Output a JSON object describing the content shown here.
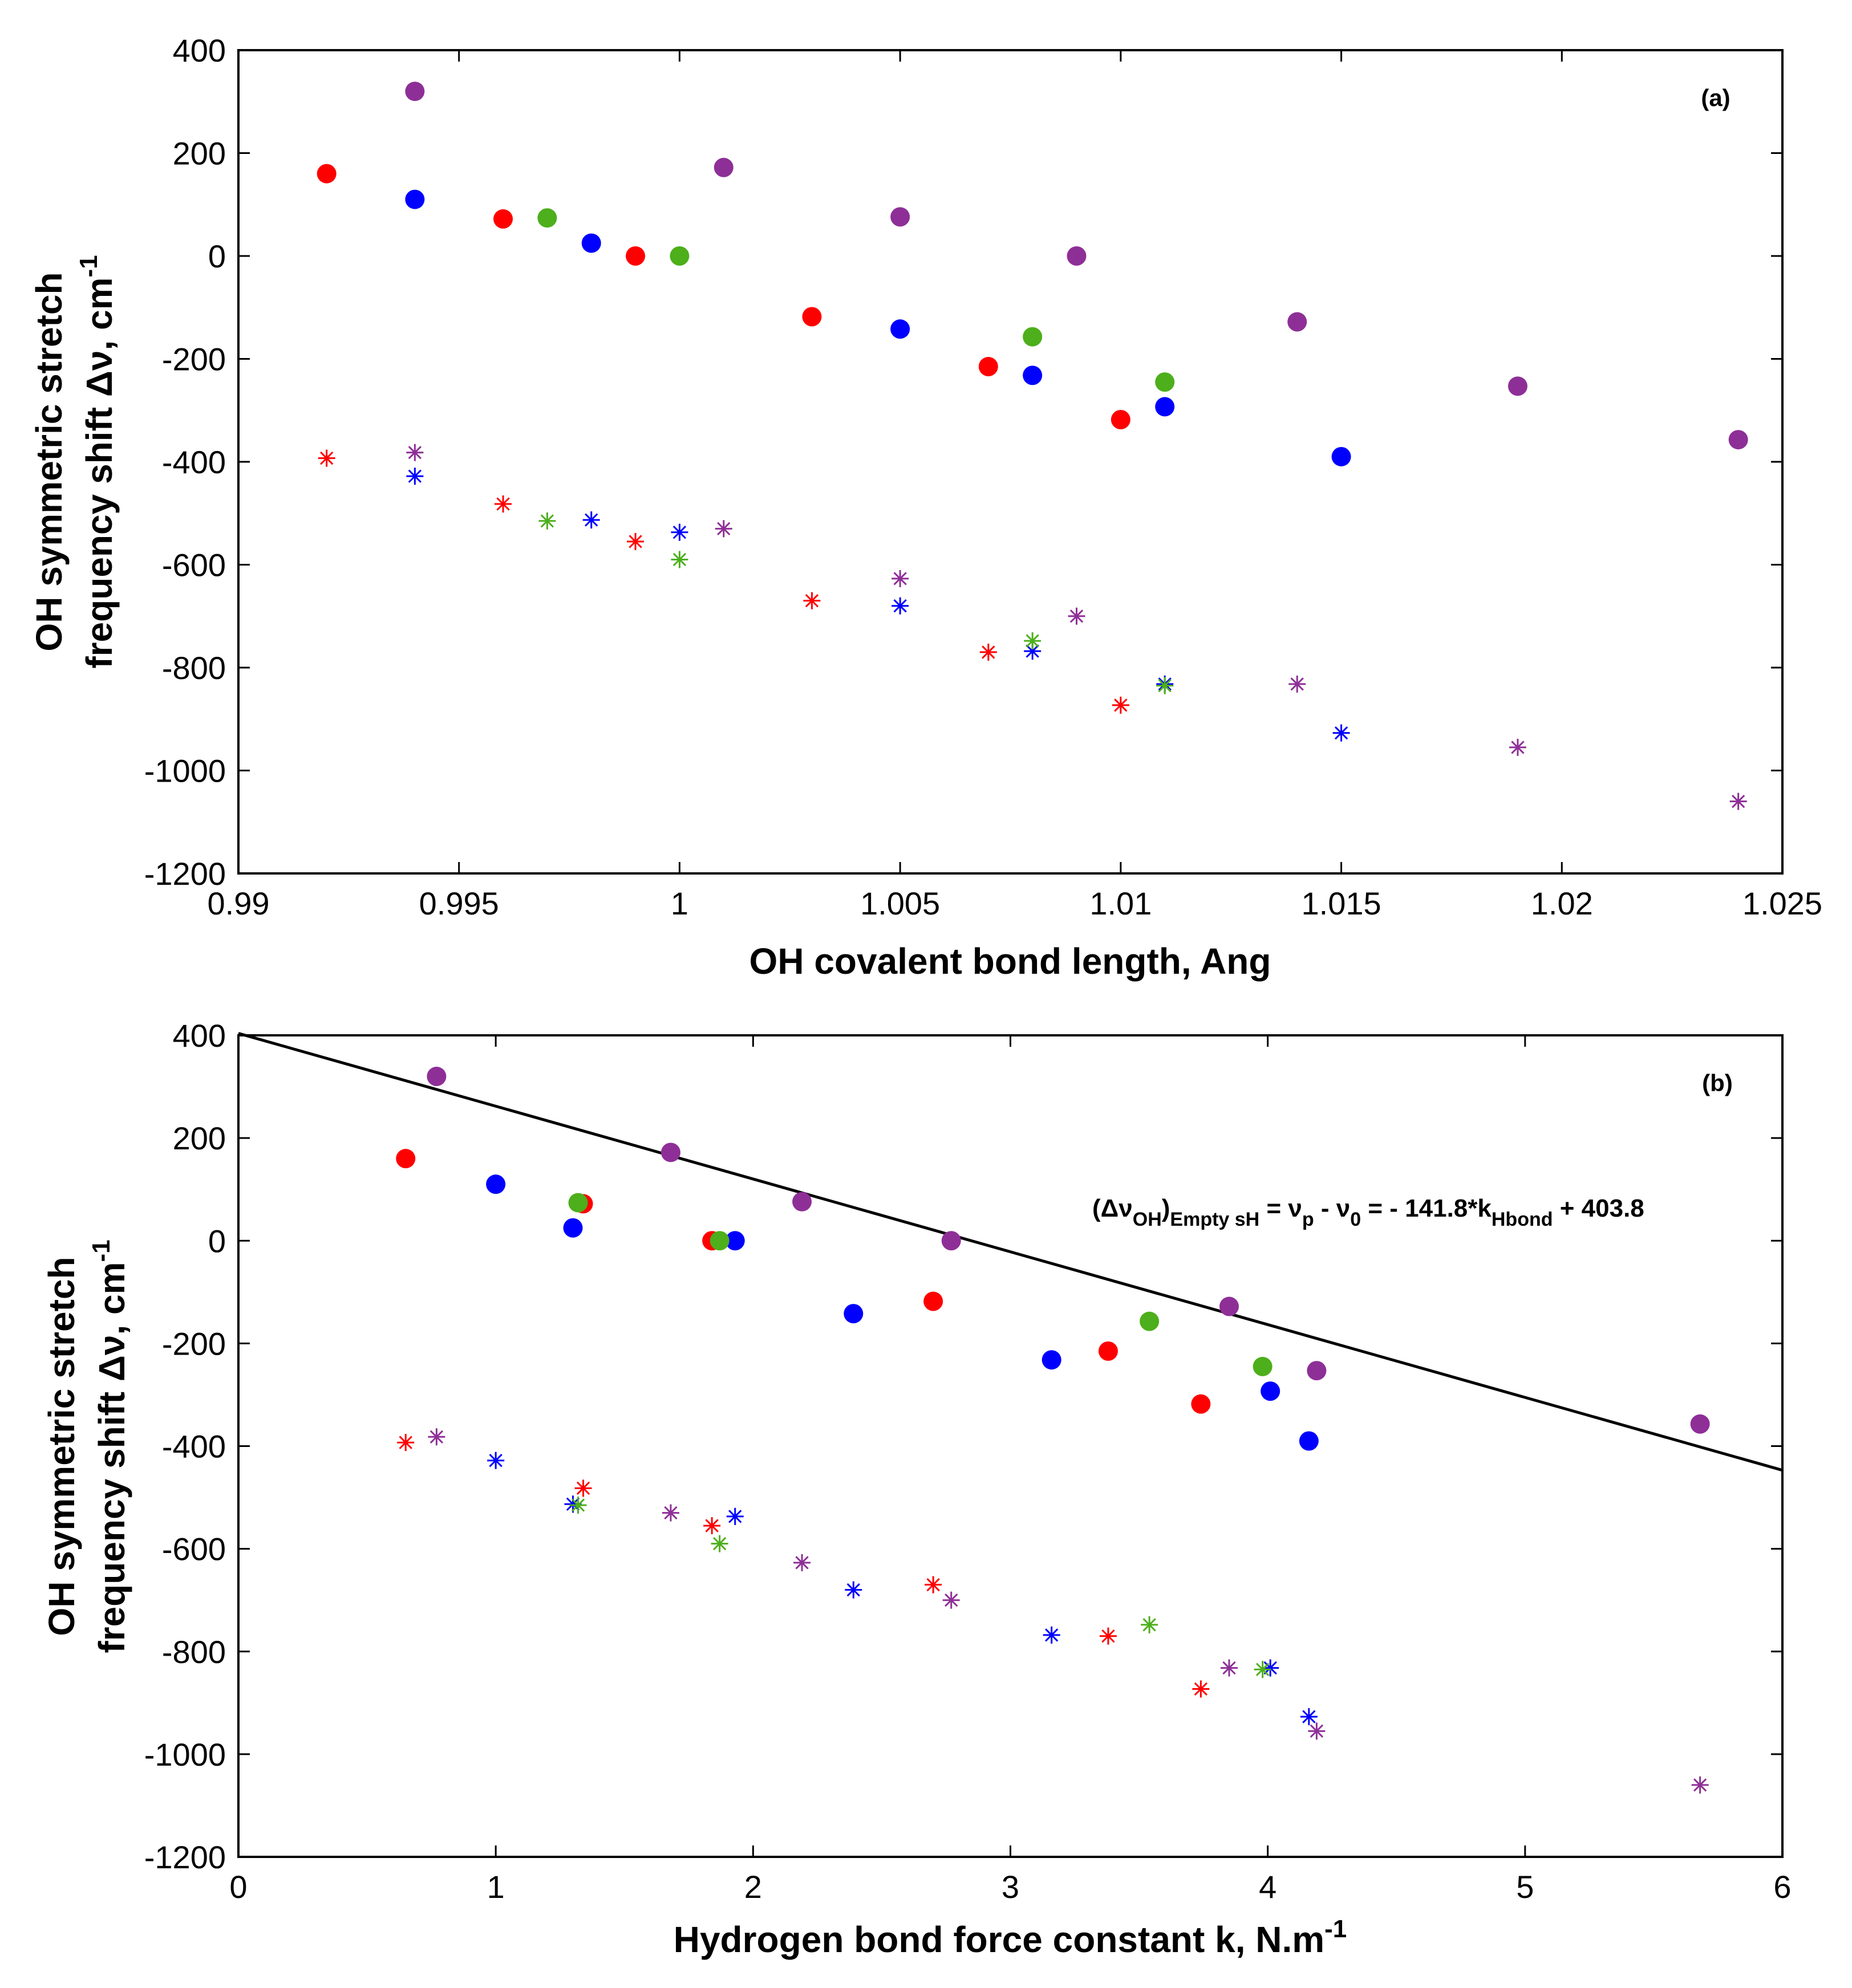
{
  "colors": {
    "red": "#ff0000",
    "green": "#4daf1b",
    "blue": "#0000ff",
    "purple": "#8e2f97",
    "fit": "#000000"
  },
  "chart_data": [
    {
      "type": "scatter",
      "panel_label": "(a)",
      "xlabel": "OH covalent bond length, Ang",
      "ylabel_line1": "OH symmetric stretch",
      "ylabel_line2": "frequency shift Δν, cm",
      "ylabel_exp": "-1",
      "xlim": [
        0.99,
        1.025
      ],
      "ylim": [
        -1200,
        400
      ],
      "xticks": [
        0.99,
        0.995,
        1,
        1.005,
        1.01,
        1.015,
        1.02,
        1.025
      ],
      "xtick_labels": [
        "0.99",
        "0.995",
        "1",
        "1.005",
        "1.01",
        "1.015",
        "1.02",
        "1.025"
      ],
      "yticks": [
        400,
        200,
        0,
        -200,
        -400,
        -600,
        -800,
        -1000,
        -1200
      ],
      "ytick_labels": [
        "400",
        "200",
        "0",
        "-200",
        "-400",
        "-600",
        "-800",
        "-1000",
        "-1200"
      ],
      "series": [
        {
          "name": "red-dots",
          "color": "red",
          "marker": "dot",
          "points": [
            [
              0.992,
              160
            ],
            [
              0.996,
              72
            ],
            [
              0.999,
              0
            ],
            [
              1.003,
              -118
            ],
            [
              1.007,
              -215
            ],
            [
              1.01,
              -318
            ]
          ]
        },
        {
          "name": "blue-dots",
          "color": "blue",
          "marker": "dot",
          "points": [
            [
              0.994,
              110
            ],
            [
              0.998,
              25
            ],
            [
              1.005,
              -142
            ],
            [
              1.008,
              -232
            ],
            [
              1.011,
              -293
            ],
            [
              1.015,
              -390
            ]
          ]
        },
        {
          "name": "green-dots",
          "color": "green",
          "marker": "dot",
          "points": [
            [
              0.997,
              74
            ],
            [
              1.0,
              0
            ],
            [
              1.008,
              -157
            ],
            [
              1.011,
              -245
            ]
          ]
        },
        {
          "name": "purple-dots",
          "color": "purple",
          "marker": "dot",
          "points": [
            [
              0.994,
              320
            ],
            [
              1.001,
              172
            ],
            [
              1.005,
              76
            ],
            [
              1.009,
              0
            ],
            [
              1.014,
              -128
            ],
            [
              1.019,
              -253
            ],
            [
              1.024,
              -357
            ]
          ]
        },
        {
          "name": "red-stars",
          "color": "red",
          "marker": "star",
          "points": [
            [
              0.992,
              -393
            ],
            [
              0.996,
              -482
            ],
            [
              0.999,
              -555
            ],
            [
              1.003,
              -670
            ],
            [
              1.007,
              -770
            ],
            [
              1.01,
              -873
            ]
          ]
        },
        {
          "name": "blue-stars",
          "color": "blue",
          "marker": "star",
          "points": [
            [
              0.994,
              -428
            ],
            [
              0.998,
              -513
            ],
            [
              1.0,
              -537
            ],
            [
              1.005,
              -680
            ],
            [
              1.008,
              -768
            ],
            [
              1.011,
              -832
            ],
            [
              1.015,
              -927
            ]
          ]
        },
        {
          "name": "green-stars",
          "color": "green",
          "marker": "star",
          "points": [
            [
              0.997,
              -515
            ],
            [
              1.0,
              -590
            ],
            [
              1.008,
              -748
            ],
            [
              1.011,
              -835
            ]
          ]
        },
        {
          "name": "purple-stars",
          "color": "purple",
          "marker": "star",
          "points": [
            [
              0.994,
              -382
            ],
            [
              1.001,
              -530
            ],
            [
              1.005,
              -627
            ],
            [
              1.009,
              -700
            ],
            [
              1.014,
              -832
            ],
            [
              1.019,
              -955
            ],
            [
              1.024,
              -1060
            ]
          ]
        }
      ]
    },
    {
      "type": "scatter",
      "panel_label": "(b)",
      "xlabel": "Hydrogen bond force constant k, N.m",
      "xlabel_exp": "-1",
      "ylabel_line1": "OH symmetric stretch",
      "ylabel_line2": "frequency shift Δν, cm",
      "ylabel_exp": "-1",
      "xlim": [
        0,
        6
      ],
      "ylim": [
        -1200,
        400
      ],
      "xticks": [
        0,
        1,
        2,
        3,
        4,
        5,
        6
      ],
      "xtick_labels": [
        "0",
        "1",
        "2",
        "3",
        "4",
        "5",
        "6"
      ],
      "yticks": [
        400,
        200,
        0,
        -200,
        -400,
        -600,
        -800,
        -1000,
        -1200
      ],
      "ytick_labels": [
        "400",
        "200",
        "0",
        "-200",
        "-400",
        "-600",
        "-800",
        "-1000",
        "-1200"
      ],
      "fit_line": {
        "slope": -141.8,
        "intercept": 403.8,
        "x_range": [
          0,
          6
        ]
      },
      "annotation": {
        "open": "(Δν",
        "sub1": "OH",
        "close": ")",
        "sub2": "Empty sH",
        "mid": " = ν",
        "sub3": "p",
        "mid2": " - ν",
        "sub4": "0",
        "mid3": " = - 141.8*k",
        "sub5": "Hbond",
        "end": " + 403.8"
      },
      "series": [
        {
          "name": "red-dots",
          "color": "red",
          "marker": "dot",
          "points": [
            [
              0.65,
              160
            ],
            [
              1.34,
              72
            ],
            [
              1.84,
              0
            ],
            [
              2.7,
              -118
            ],
            [
              3.38,
              -215
            ],
            [
              3.74,
              -318
            ]
          ]
        },
        {
          "name": "blue-dots",
          "color": "blue",
          "marker": "dot",
          "points": [
            [
              1.0,
              110
            ],
            [
              1.3,
              25
            ],
            [
              1.93,
              0
            ],
            [
              2.39,
              -142
            ],
            [
              3.16,
              -232
            ],
            [
              4.01,
              -293
            ],
            [
              4.16,
              -390
            ]
          ]
        },
        {
          "name": "green-dots",
          "color": "green",
          "marker": "dot",
          "points": [
            [
              1.32,
              74
            ],
            [
              1.87,
              0
            ],
            [
              3.54,
              -157
            ],
            [
              3.98,
              -245
            ]
          ]
        },
        {
          "name": "purple-dots",
          "color": "purple",
          "marker": "dot",
          "points": [
            [
              0.77,
              320
            ],
            [
              1.68,
              172
            ],
            [
              2.19,
              76
            ],
            [
              2.77,
              0
            ],
            [
              3.85,
              -128
            ],
            [
              4.19,
              -253
            ],
            [
              5.68,
              -357
            ]
          ]
        },
        {
          "name": "red-stars",
          "color": "red",
          "marker": "star",
          "points": [
            [
              0.65,
              -393
            ],
            [
              1.34,
              -482
            ],
            [
              1.84,
              -555
            ],
            [
              2.7,
              -670
            ],
            [
              3.38,
              -770
            ],
            [
              3.74,
              -873
            ]
          ]
        },
        {
          "name": "blue-stars",
          "color": "blue",
          "marker": "star",
          "points": [
            [
              1.0,
              -428
            ],
            [
              1.3,
              -513
            ],
            [
              1.93,
              -537
            ],
            [
              2.39,
              -680
            ],
            [
              3.16,
              -768
            ],
            [
              4.01,
              -832
            ],
            [
              4.16,
              -927
            ]
          ]
        },
        {
          "name": "green-stars",
          "color": "green",
          "marker": "star",
          "points": [
            [
              1.32,
              -515
            ],
            [
              1.87,
              -590
            ],
            [
              3.54,
              -748
            ],
            [
              3.98,
              -835
            ]
          ]
        },
        {
          "name": "purple-stars",
          "color": "purple",
          "marker": "star",
          "points": [
            [
              0.77,
              -382
            ],
            [
              1.68,
              -530
            ],
            [
              2.19,
              -627
            ],
            [
              2.77,
              -700
            ],
            [
              3.85,
              -832
            ],
            [
              4.19,
              -955
            ],
            [
              5.68,
              -1060
            ]
          ]
        }
      ]
    }
  ]
}
